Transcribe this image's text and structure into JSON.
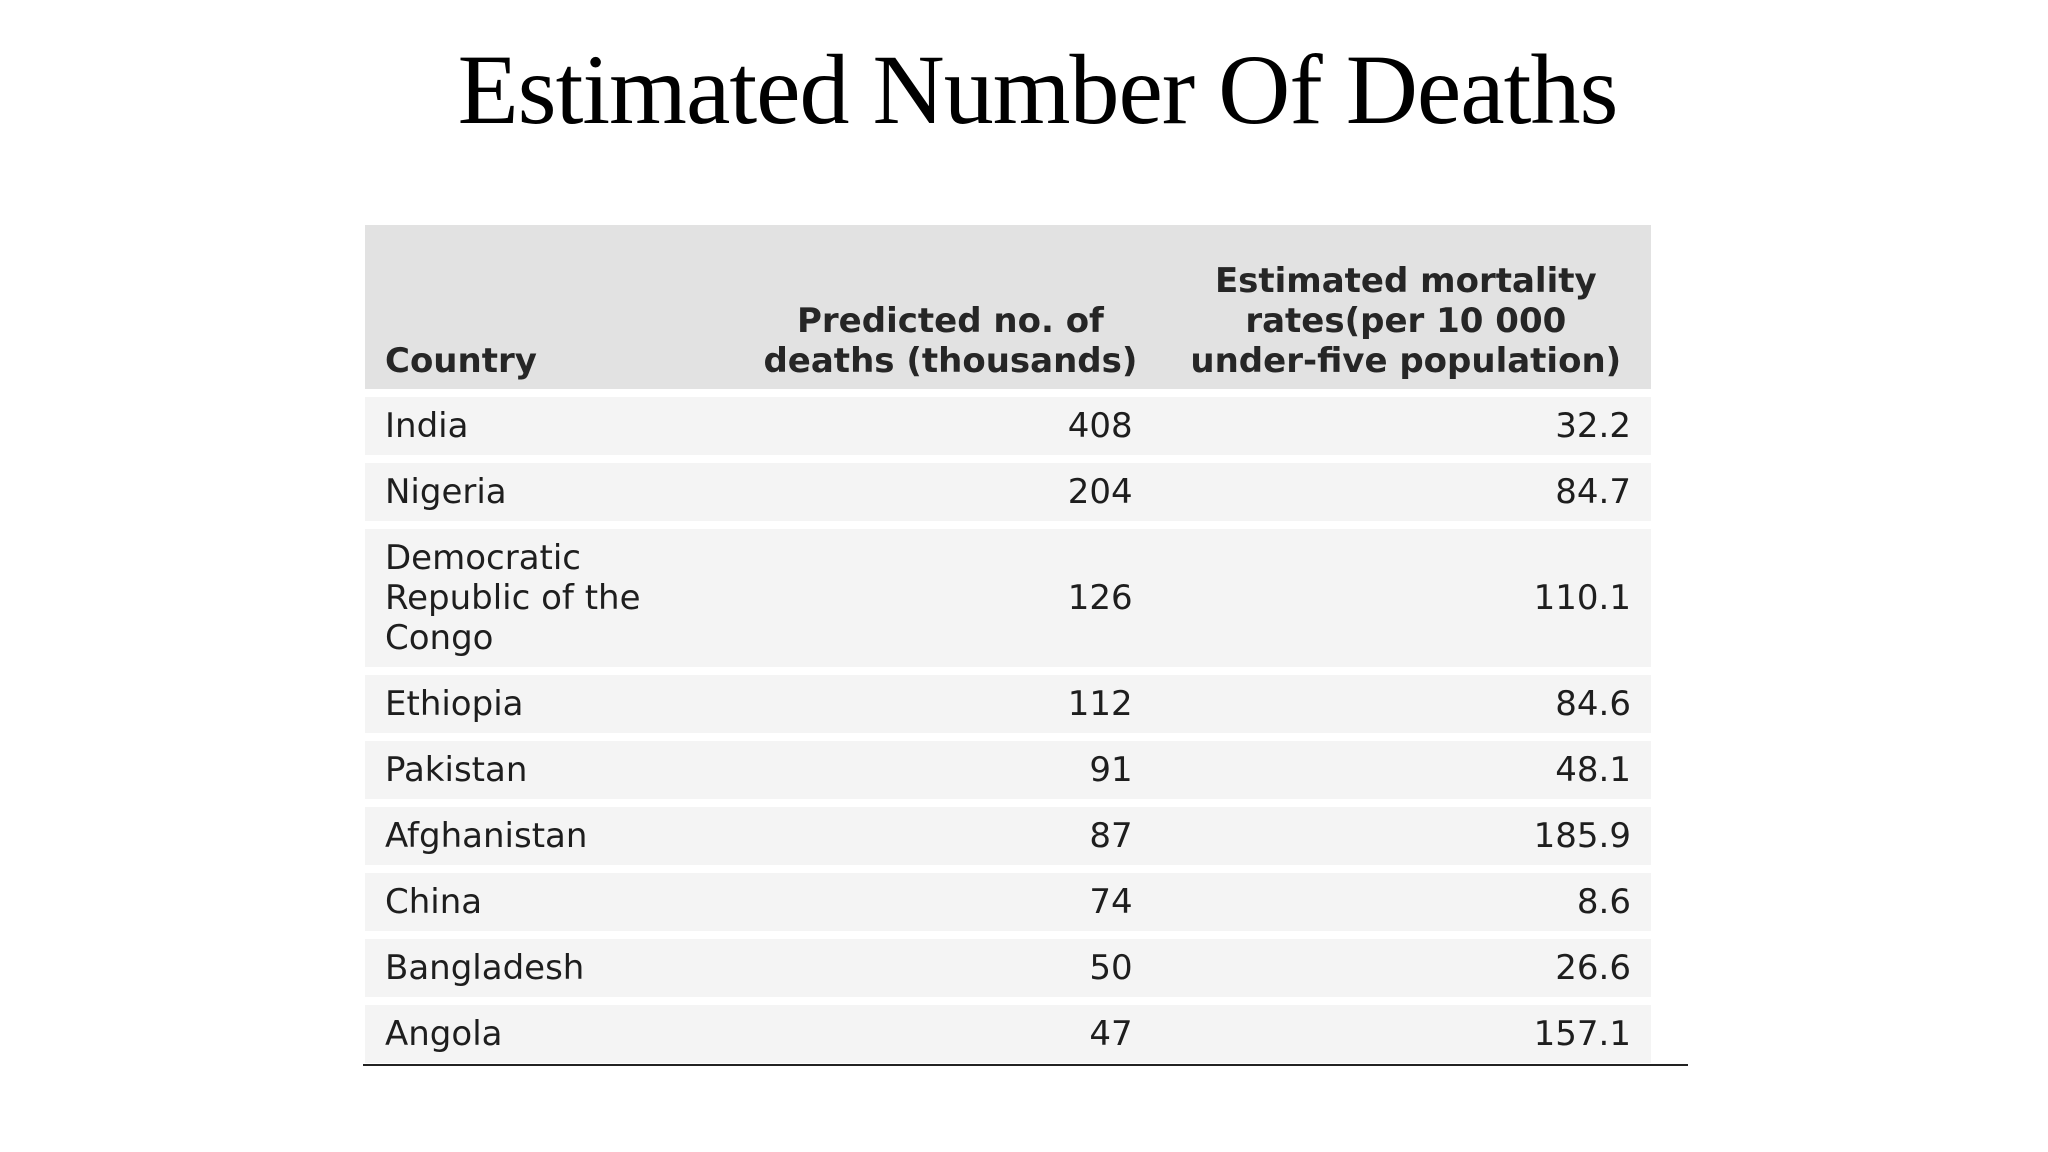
{
  "title": "Estimated Number Of Deaths",
  "table": {
    "headers": {
      "country": "Country",
      "deaths": "Predicted no. of deaths (thousands)",
      "rate": "Estimated mortality rates(per 10 000 under-five population)"
    },
    "rows": [
      {
        "country": "India",
        "deaths": "408",
        "rate": "32.2"
      },
      {
        "country": "Nigeria",
        "deaths": "204",
        "rate": "84.7"
      },
      {
        "country": "Democratic Republic of the Congo",
        "deaths": "126",
        "rate": "110.1"
      },
      {
        "country": "Ethiopia",
        "deaths": "112",
        "rate": "84.6"
      },
      {
        "country": "Pakistan",
        "deaths": "91",
        "rate": "48.1"
      },
      {
        "country": "Afghanistan",
        "deaths": "87",
        "rate": "185.9"
      },
      {
        "country": "China",
        "deaths": "74",
        "rate": "8.6"
      },
      {
        "country": "Bangladesh",
        "deaths": "50",
        "rate": "26.6"
      },
      {
        "country": "Angola",
        "deaths": "47",
        "rate": "157.1"
      }
    ]
  }
}
